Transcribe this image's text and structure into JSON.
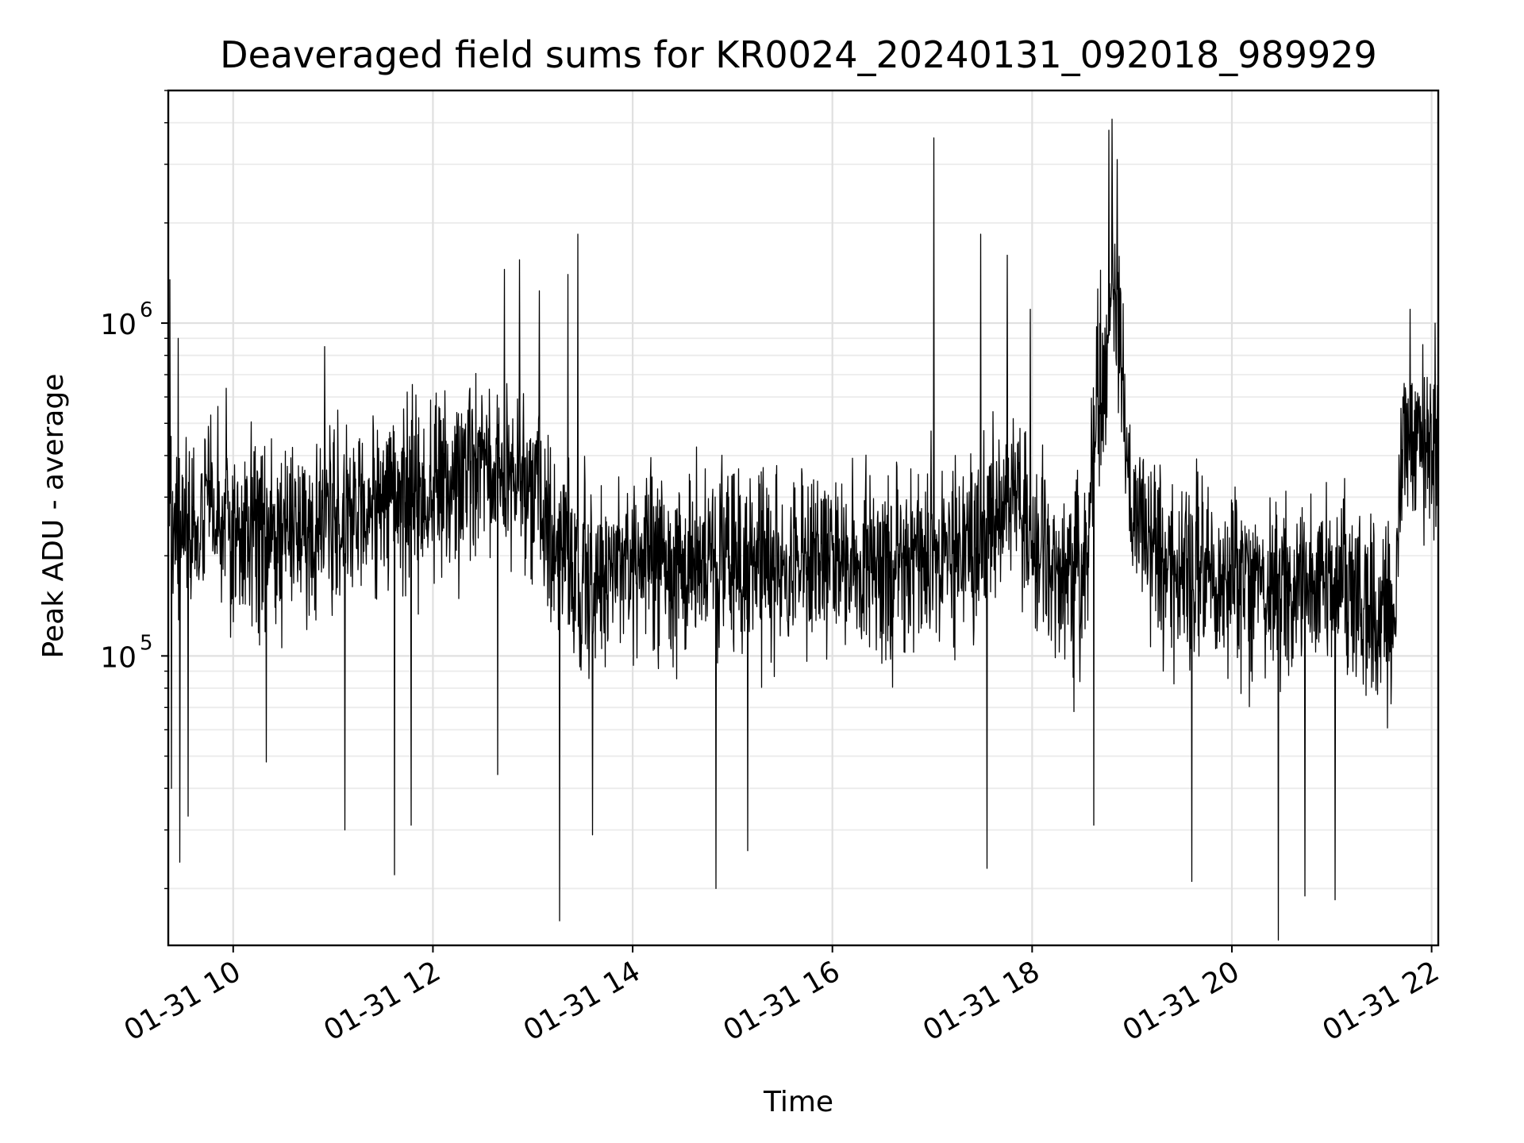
{
  "chart_data": {
    "type": "line",
    "title": "Deaveraged field sums for KR0024_20240131_092018_989929",
    "xlabel": "Time",
    "ylabel": "Peak ADU - average",
    "x_scale": "time",
    "y_scale": "log",
    "xlim": [
      "2024-01-31 09:21",
      "2024-01-31 22:04"
    ],
    "ylim": [
      13500,
      5000000
    ],
    "x_ticks": [
      {
        "value": "2024-01-31 10:00",
        "label": "01-31 10"
      },
      {
        "value": "2024-01-31 12:00",
        "label": "01-31 12"
      },
      {
        "value": "2024-01-31 14:00",
        "label": "01-31 14"
      },
      {
        "value": "2024-01-31 16:00",
        "label": "01-31 16"
      },
      {
        "value": "2024-01-31 18:00",
        "label": "01-31 18"
      },
      {
        "value": "2024-01-31 20:00",
        "label": "01-31 20"
      },
      {
        "value": "2024-01-31 22:00",
        "label": "01-31 22"
      }
    ],
    "y_ticks": [
      {
        "value": 100000,
        "base": "10",
        "exp": "5"
      },
      {
        "value": 1000000,
        "base": "10",
        "exp": "6"
      }
    ],
    "grid": true,
    "line_color": "#000000",
    "baseline": [
      [
        "2024-01-31 09:21",
        230000
      ],
      [
        "2024-01-31 09:45",
        260000
      ],
      [
        "2024-01-31 10:00",
        230000
      ],
      [
        "2024-01-31 10:30",
        230000
      ],
      [
        "2024-01-31 11:00",
        240000
      ],
      [
        "2024-01-31 11:30",
        290000
      ],
      [
        "2024-01-31 12:00",
        320000
      ],
      [
        "2024-01-31 12:30",
        380000
      ],
      [
        "2024-01-31 13:00",
        320000
      ],
      [
        "2024-01-31 13:15",
        200000
      ],
      [
        "2024-01-31 13:30",
        170000
      ],
      [
        "2024-01-31 14:00",
        200000
      ],
      [
        "2024-01-31 14:30",
        180000
      ],
      [
        "2024-01-31 15:00",
        200000
      ],
      [
        "2024-01-31 15:30",
        190000
      ],
      [
        "2024-01-31 16:00",
        200000
      ],
      [
        "2024-01-31 16:30",
        190000
      ],
      [
        "2024-01-31 17:00",
        200000
      ],
      [
        "2024-01-31 17:30",
        210000
      ],
      [
        "2024-01-31 17:50",
        300000
      ],
      [
        "2024-01-31 18:10",
        180000
      ],
      [
        "2024-01-31 18:30",
        170000
      ],
      [
        "2024-01-31 18:40",
        600000
      ],
      [
        "2024-01-31 18:50",
        1500000
      ],
      [
        "2024-01-31 19:00",
        250000
      ],
      [
        "2024-01-31 19:30",
        170000
      ],
      [
        "2024-01-31 20:00",
        170000
      ],
      [
        "2024-01-31 20:30",
        150000
      ],
      [
        "2024-01-31 21:00",
        160000
      ],
      [
        "2024-01-31 21:38",
        130000
      ],
      [
        "2024-01-31 21:42",
        450000
      ],
      [
        "2024-01-31 22:04",
        430000
      ]
    ],
    "spikes": [
      [
        "2024-01-31 09:22",
        1350000
      ],
      [
        "2024-01-31 09:23",
        40000
      ],
      [
        "2024-01-31 09:27",
        900000
      ],
      [
        "2024-01-31 09:28",
        24000
      ],
      [
        "2024-01-31 09:33",
        33000
      ],
      [
        "2024-01-31 10:20",
        48000
      ],
      [
        "2024-01-31 10:55",
        850000
      ],
      [
        "2024-01-31 11:07",
        30000
      ],
      [
        "2024-01-31 11:37",
        22000
      ],
      [
        "2024-01-31 11:47",
        31000
      ],
      [
        "2024-01-31 12:39",
        44000
      ],
      [
        "2024-01-31 12:43",
        1450000
      ],
      [
        "2024-01-31 12:52",
        1550000
      ],
      [
        "2024-01-31 13:04",
        1250000
      ],
      [
        "2024-01-31 13:16",
        16000
      ],
      [
        "2024-01-31 13:21",
        1400000
      ],
      [
        "2024-01-31 13:27",
        1850000
      ],
      [
        "2024-01-31 13:36",
        29000
      ],
      [
        "2024-01-31 14:50",
        20000
      ],
      [
        "2024-01-31 15:09",
        26000
      ],
      [
        "2024-01-31 17:01",
        3600000
      ],
      [
        "2024-01-31 17:29",
        1850000
      ],
      [
        "2024-01-31 17:33",
        23000
      ],
      [
        "2024-01-31 17:45",
        1600000
      ],
      [
        "2024-01-31 17:59",
        1100000
      ],
      [
        "2024-01-31 18:37",
        31000
      ],
      [
        "2024-01-31 18:46",
        3800000
      ],
      [
        "2024-01-31 18:48",
        4100000
      ],
      [
        "2024-01-31 18:51",
        3100000
      ],
      [
        "2024-01-31 19:36",
        21000
      ],
      [
        "2024-01-31 20:01",
        195000.0
      ],
      [
        "2024-01-31 20:28",
        14000
      ],
      [
        "2024-01-31 20:44",
        19000
      ],
      [
        "2024-01-31 21:02",
        18500
      ],
      [
        "2024-01-31 21:47",
        1100000
      ],
      [
        "2024-01-31 22:02",
        1000000
      ]
    ]
  }
}
